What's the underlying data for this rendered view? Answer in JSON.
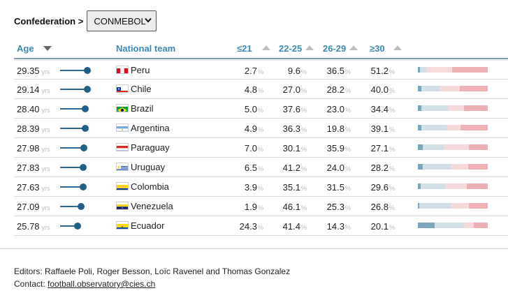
{
  "filter": {
    "label": "Confederation >",
    "selected": "CONMEBOL",
    "icon": "chevron-down-icon"
  },
  "columns": {
    "age": "Age",
    "team": "National team",
    "c1": "≤21",
    "c2": "22-25",
    "c3": "26-29",
    "c4": "≥30",
    "age_unit": "yrs",
    "pct_unit": "%"
  },
  "sort": {
    "age": "descending",
    "c1": "ascending",
    "c2": "ascending",
    "c3": "ascending",
    "c4": "ascending"
  },
  "colors": {
    "header_text": "#3a89b5",
    "lollipop": "#1e6088",
    "seg1": "#7aa6bc",
    "seg2": "#cfe0e7",
    "seg3": "#f7dadb",
    "seg4": "#eeb0b3"
  },
  "rows": [
    {
      "age": "29.35",
      "team": "Peru",
      "flag": "peru-flag-icon",
      "p1": "2.7",
      "p2": "9.6",
      "p3": "36.5",
      "p4": "51.2"
    },
    {
      "age": "29.14",
      "team": "Chile",
      "flag": "chile-flag-icon",
      "p1": "4.8",
      "p2": "27.0",
      "p3": "28.2",
      "p4": "40.0"
    },
    {
      "age": "28.40",
      "team": "Brazil",
      "flag": "brazil-flag-icon",
      "p1": "5.0",
      "p2": "37.6",
      "p3": "23.0",
      "p4": "34.4"
    },
    {
      "age": "28.39",
      "team": "Argentina",
      "flag": "argentina-flag-icon",
      "p1": "4.9",
      "p2": "36.3",
      "p3": "19.8",
      "p4": "39.1"
    },
    {
      "age": "27.98",
      "team": "Paraguay",
      "flag": "paraguay-flag-icon",
      "p1": "7.0",
      "p2": "30.1",
      "p3": "35.9",
      "p4": "27.1"
    },
    {
      "age": "27.83",
      "team": "Uruguay",
      "flag": "uruguay-flag-icon",
      "p1": "6.5",
      "p2": "41.2",
      "p3": "24.0",
      "p4": "28.2"
    },
    {
      "age": "27.63",
      "team": "Colombia",
      "flag": "colombia-flag-icon",
      "p1": "3.9",
      "p2": "35.1",
      "p3": "31.5",
      "p4": "29.6"
    },
    {
      "age": "27.09",
      "team": "Venezuela",
      "flag": "venezuela-flag-icon",
      "p1": "1.9",
      "p2": "46.1",
      "p3": "25.3",
      "p4": "26.8"
    },
    {
      "age": "25.78",
      "team": "Ecuador",
      "flag": "ecuador-flag-icon",
      "p1": "24.3",
      "p2": "41.4",
      "p3": "14.3",
      "p4": "20.1"
    }
  ],
  "footer": {
    "editors": "Editors: Raffaele Poli, Roger Besson, Loïc Ravenel and Thomas Gonzalez",
    "contact_label": "Contact:",
    "contact_email": "football.observatory@cies.ch"
  }
}
